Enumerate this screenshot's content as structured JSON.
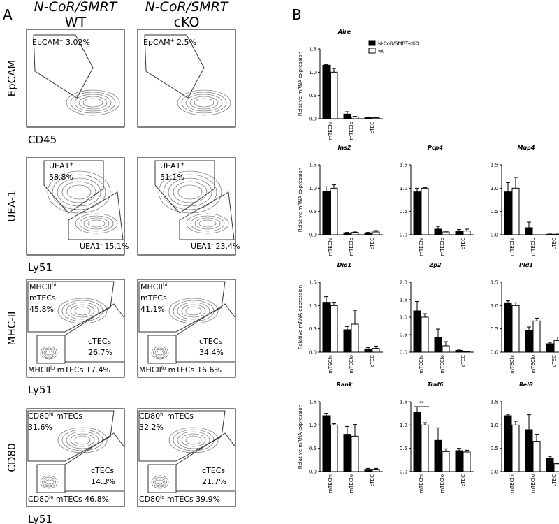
{
  "panel_a": {
    "label": "A",
    "columns": [
      {
        "line1": "N-CoR/SMRT",
        "line2": "WT"
      },
      {
        "line1": "N-CoR/SMRT",
        "line2": "cKO"
      }
    ],
    "rows": [
      {
        "y_label": "EpCAM",
        "x_label": "CD45",
        "plots": [
          [
            [
              [
                "EpCAM",
                {
                  "sup": "+"
                },
                " 3.02%"
              ]
            ]
          ],
          [
            [
              [
                "EpCAM",
                {
                  "sup": "+"
                },
                " 2.5%"
              ]
            ]
          ]
        ]
      },
      {
        "y_label": "UEA-1",
        "x_label": "Ly51",
        "plots": [
          [
            [
              [
                "UEA1",
                {
                  "sup": "+"
                }
              ],
              [
                "58.8%"
              ]
            ],
            [
              [
                "UEA1",
                {
                  "sup": "-"
                },
                " 15.1%"
              ]
            ]
          ],
          [
            [
              [
                "UEA1",
                {
                  "sup": "+"
                }
              ],
              [
                "51.1%"
              ]
            ],
            [
              [
                "UEA1",
                {
                  "sup": "-"
                },
                " 23.4%"
              ]
            ]
          ]
        ]
      },
      {
        "y_label": "MHC-II",
        "x_label": "Ly51",
        "plots": [
          [
            [
              [
                "MHCII",
                {
                  "sup": "hi"
                }
              ],
              [
                "mTECs"
              ],
              [
                "45.8%"
              ]
            ],
            [
              [
                "cTECs"
              ],
              [
                "26.7%"
              ]
            ],
            [
              [
                "MHCII",
                {
                  "sup": "lo"
                },
                " mTECs 17.4%"
              ]
            ]
          ],
          [
            [
              [
                "MHCII",
                {
                  "sup": "hi"
                }
              ],
              [
                "mTECs"
              ],
              [
                "41.1%"
              ]
            ],
            [
              [
                "cTECs"
              ],
              [
                "34.4%"
              ]
            ],
            [
              [
                "MHCII",
                {
                  "sup": "lo"
                },
                " mTECs 16.6%"
              ]
            ]
          ]
        ]
      },
      {
        "y_label": "CD80",
        "x_label": "Ly51",
        "plots": [
          [
            [
              [
                "CD80",
                {
                  "sup": "hi"
                },
                " mTECs"
              ],
              [
                "31.6%"
              ]
            ],
            [
              [
                "cTECs"
              ],
              [
                "14.3%"
              ]
            ],
            [
              [
                "CD80",
                {
                  "sup": "lo"
                },
                " mTECs 46.8%"
              ]
            ]
          ],
          [
            [
              [
                "CD80",
                {
                  "sup": "hi"
                },
                " mTECs"
              ],
              [
                "32.2%"
              ]
            ],
            [
              [
                "cTECs"
              ],
              [
                "21.7%"
              ]
            ],
            [
              [
                "CD80",
                {
                  "sup": "lo"
                },
                " mTECs 39.9%"
              ]
            ]
          ]
        ]
      }
    ]
  },
  "panel_b_label": "B",
  "chart_data": [
    {
      "type": "bar",
      "title": "Aire",
      "ylabel": "Relative mRNA expression",
      "legend": "upper right",
      "categories": [
        "mTEChi",
        "mTEClo",
        "cTEC"
      ],
      "ylim": [
        0,
        1.5
      ],
      "yticks": [
        {
          "value": 0,
          "label": "0.0"
        },
        0.5,
        {
          "value": 1,
          "label": "1.0"
        },
        1.5
      ],
      "series": [
        {
          "name": "N-CoR/SMRT-cKO",
          "color": "#000000",
          "values": [
            1.15,
            0.1,
            0.02
          ],
          "errors": [
            0.01,
            0.05,
            0.01
          ]
        },
        {
          "name": "wt",
          "color": "#ffffff",
          "values": [
            1.0,
            0.04,
            0.02
          ],
          "errors": [
            0.08,
            0.01,
            0.01
          ]
        }
      ]
    },
    {
      "type": "bar",
      "title": "Ins2",
      "ylabel": "Relative mRNA expression",
      "categories": [
        "mTEChi",
        "mTEClo",
        "cTEC"
      ],
      "ylim": [
        0,
        1.5
      ],
      "yticks": [
        {
          "value": 0,
          "label": "0.0"
        },
        0.5,
        {
          "value": 1,
          "label": "1.0"
        },
        1.5
      ],
      "series": [
        {
          "color": "#000000",
          "values": [
            0.93,
            0.04,
            0.04
          ],
          "errors": [
            0.1,
            0.01,
            0.01
          ]
        },
        {
          "color": "#ffffff",
          "values": [
            1.0,
            0.05,
            0.06
          ],
          "errors": [
            0.07,
            0.01,
            0.03
          ]
        }
      ]
    },
    {
      "type": "bar",
      "title": "Pcp4",
      "categories": [
        "mTEChi",
        "mTEClo",
        "cTEC"
      ],
      "ylim": [
        0,
        1.5
      ],
      "yticks": [
        {
          "value": 0,
          "label": "0.0"
        },
        0.5,
        {
          "value": 1,
          "label": "1.0"
        },
        1.5
      ],
      "series": [
        {
          "color": "#000000",
          "values": [
            0.92,
            0.12,
            0.08
          ],
          "errors": [
            0.08,
            0.06,
            0.03
          ]
        },
        {
          "color": "#ffffff",
          "values": [
            1.0,
            0.06,
            0.08
          ],
          "errors": [
            0.01,
            0.02,
            0.04
          ]
        }
      ]
    },
    {
      "type": "bar",
      "title": "Mup4",
      "categories": [
        "mTEChi",
        "mTEClo",
        "cTEC"
      ],
      "ylim": [
        0,
        1.5
      ],
      "yticks": [
        {
          "value": 0,
          "label": "0.0"
        },
        0.5,
        {
          "value": 1,
          "label": "1.0"
        },
        1.5
      ],
      "series": [
        {
          "color": "#000000",
          "values": [
            0.92,
            0.15,
            0.01
          ],
          "errors": [
            0.2,
            0.12,
            0.005
          ]
        },
        {
          "color": "#ffffff",
          "values": [
            1.0,
            0,
            0.01
          ],
          "errors": [
            0.23,
            0,
            0.005
          ]
        }
      ]
    },
    {
      "type": "bar",
      "title": "Dio1",
      "ylabel": "Relative mRNA expression",
      "categories": [
        "mTEChi",
        "mTEClo",
        "cTEC"
      ],
      "ylim": [
        0,
        1.5
      ],
      "yticks": [
        {
          "value": 0,
          "label": "0.0"
        },
        0.5,
        {
          "value": 1,
          "label": "1.0"
        },
        1.5
      ],
      "series": [
        {
          "color": "#000000",
          "values": [
            1.07,
            0.48,
            0.07
          ],
          "errors": [
            0.12,
            0.07,
            0.03
          ]
        },
        {
          "color": "#ffffff",
          "values": [
            1.0,
            0.6,
            0.08
          ],
          "errors": [
            0.07,
            0.3,
            0.05
          ]
        }
      ]
    },
    {
      "type": "bar",
      "title": "Zp2",
      "categories": [
        "mTEChi",
        "mTEClo",
        "cTEC"
      ],
      "ylim": [
        0,
        2
      ],
      "yticks": [
        {
          "value": 0,
          "label": "0.0"
        },
        0.5,
        {
          "value": 1,
          "label": "1.0"
        },
        1.5,
        {
          "value": 2,
          "label": "2.0"
        }
      ],
      "series": [
        {
          "color": "#000000",
          "values": [
            1.18,
            0.43,
            0.05
          ],
          "errors": [
            0.27,
            0.23,
            0.01
          ]
        },
        {
          "color": "#ffffff",
          "values": [
            1.0,
            0.18,
            0.02
          ],
          "errors": [
            0.1,
            0.12,
            0.01
          ]
        }
      ]
    },
    {
      "type": "bar",
      "title": "Pld1",
      "categories": [
        "mTEChi",
        "mTEClo",
        "cTEC"
      ],
      "ylim": [
        0,
        1.5
      ],
      "yticks": [
        {
          "value": 0,
          "label": "0.0"
        },
        0.5,
        {
          "value": 1,
          "label": "1.0"
        },
        1.5
      ],
      "series": [
        {
          "color": "#000000",
          "values": [
            1.06,
            0.46,
            0.18
          ],
          "errors": [
            0.04,
            0.08,
            0.03
          ]
        },
        {
          "color": "#ffffff",
          "values": [
            1.0,
            0.67,
            0.25
          ],
          "errors": [
            0.06,
            0.06,
            0.07
          ]
        }
      ]
    },
    {
      "type": "bar",
      "title": "Rank",
      "ylabel": "Relative mRNA expression",
      "categories": [
        "mTEChi",
        "mTEClo",
        "cTEC"
      ],
      "ylim": [
        0,
        1.5
      ],
      "yticks": [
        {
          "value": 0,
          "label": "0.0"
        },
        0.5,
        {
          "value": 1,
          "label": "1.0"
        },
        1.5
      ],
      "series": [
        {
          "color": "#000000",
          "values": [
            1.2,
            0.8,
            0.05
          ],
          "errors": [
            0.05,
            0.17,
            0.02
          ]
        },
        {
          "color": "#ffffff",
          "values": [
            1.0,
            0.76,
            0.05
          ],
          "errors": [
            0.03,
            0.25,
            0.02
          ]
        }
      ]
    },
    {
      "type": "bar",
      "title": "Traf6",
      "annotation": "**",
      "categories": [
        "mTEChi",
        "mTEClo",
        "cTEC"
      ],
      "ylim": [
        0,
        1.5
      ],
      "yticks": [
        {
          "value": 0,
          "label": "0.0"
        },
        0.5,
        {
          "value": 1,
          "label": "1.0"
        },
        1.5
      ],
      "series": [
        {
          "color": "#000000",
          "values": [
            1.27,
            0.67,
            0.45
          ],
          "errors": [
            0.12,
            0.27,
            0.05
          ]
        },
        {
          "color": "#ffffff",
          "values": [
            1.0,
            0.43,
            0.42
          ],
          "errors": [
            0.05,
            0.06,
            0.04
          ]
        }
      ]
    },
    {
      "type": "bar",
      "title": "RelB",
      "categories": [
        "mTEChi",
        "mTEClo",
        "cTEC"
      ],
      "ylim": [
        0,
        1.5
      ],
      "yticks": [
        {
          "value": 0,
          "label": "0.0"
        },
        0.5,
        {
          "value": 1,
          "label": "1.0"
        },
        1.5
      ],
      "series": [
        {
          "color": "#000000",
          "values": [
            1.2,
            0.9,
            0.28
          ],
          "errors": [
            0.03,
            0.32,
            0.05
          ]
        },
        {
          "color": "#ffffff",
          "values": [
            1.0,
            0.65,
            0.17
          ],
          "errors": [
            0.08,
            0.15,
            0.0
          ]
        }
      ]
    }
  ]
}
